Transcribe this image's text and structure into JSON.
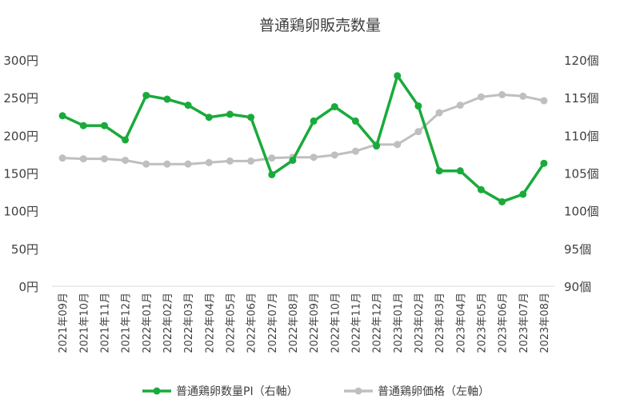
{
  "chart_data": {
    "type": "line",
    "title": "普通鶏卵販売数量",
    "categories": [
      "2021年09月",
      "2021年10月",
      "2021年11月",
      "2021年12月",
      "2022年01月",
      "2022年02月",
      "2022年03月",
      "2022年04月",
      "2022年05月",
      "2022年06月",
      "2022年07月",
      "2022年08月",
      "2022年09月",
      "2022年10月",
      "2022年11月",
      "2022年12月",
      "2023年01月",
      "2023年02月",
      "2023年03月",
      "2023年04月",
      "2023年05月",
      "2023年06月",
      "2023年07月",
      "2023年08月"
    ],
    "y_left": {
      "ticks": [
        0,
        50,
        100,
        150,
        200,
        250,
        300
      ],
      "tick_labels": [
        "0円",
        "50円",
        "100円",
        "150円",
        "200円",
        "250円",
        "300円"
      ],
      "ylim": [
        0,
        300
      ]
    },
    "y_right": {
      "ticks": [
        90,
        95,
        100,
        105,
        110,
        115,
        120
      ],
      "tick_labels": [
        "90個",
        "95個",
        "100個",
        "105個",
        "110個",
        "115個",
        "120個"
      ],
      "ylim": [
        90,
        120
      ]
    },
    "series": [
      {
        "name": "普通鶏卵数量PI（右軸）",
        "axis": "right",
        "color": "#1aaa3c",
        "values": [
          112.6,
          111.3,
          111.3,
          109.4,
          115.3,
          114.8,
          114.0,
          112.4,
          112.8,
          112.4,
          104.8,
          106.7,
          111.9,
          113.8,
          111.9,
          108.6,
          117.9,
          113.9,
          105.3,
          105.3,
          102.8,
          101.2,
          102.2,
          106.3
        ]
      },
      {
        "name": "普通鶏卵価格（左軸）",
        "axis": "left",
        "color": "#bfbfbf",
        "values": [
          170,
          169,
          169,
          167,
          162,
          162,
          162,
          164,
          166,
          166,
          170,
          171,
          171,
          174,
          179,
          188,
          188,
          205,
          230,
          240,
          251,
          254,
          252,
          246
        ]
      }
    ],
    "legend_position": "bottom",
    "grid": false
  }
}
